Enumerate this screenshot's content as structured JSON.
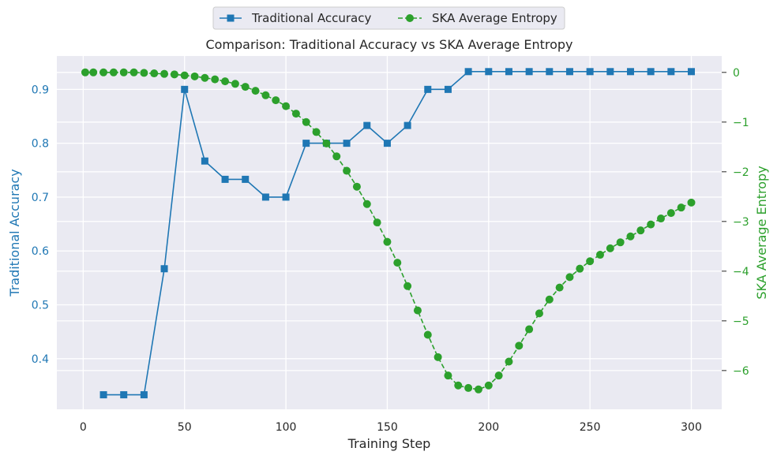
{
  "chart_data": {
    "type": "line",
    "title": "Comparison: Traditional Accuracy vs SKA Average Entropy",
    "xlabel": "Training Step",
    "ylabel_left": "Traditional Accuracy",
    "ylabel_right": "SKA Average Entropy",
    "xlim": [
      -13,
      315
    ],
    "ylim_left": [
      0.306,
      0.962
    ],
    "ylim_right": [
      -6.78,
      0.33
    ],
    "x_ticks": [
      "0",
      "50",
      "100",
      "150",
      "200",
      "250",
      "300"
    ],
    "y_left_ticks": [
      "0.4",
      "0.5",
      "0.6",
      "0.7",
      "0.8",
      "0.9"
    ],
    "y_right_ticks": [
      "0",
      "−1",
      "−2",
      "−3",
      "−4",
      "−5",
      "−6"
    ],
    "grid": true,
    "legend_position": "top-center (outside)",
    "colors": {
      "accuracy": "#1f77b4",
      "entropy": "#2ca02c",
      "plot_bg": "#eaeaf2",
      "grid": "#ffffff",
      "text": "#262626"
    },
    "series": [
      {
        "name": "Traditional Accuracy",
        "axis": "left",
        "marker": "square",
        "linestyle": "solid",
        "x": [
          10,
          20,
          30,
          40,
          50,
          60,
          70,
          80,
          90,
          100,
          110,
          120,
          130,
          140,
          150,
          160,
          170,
          180,
          190,
          200,
          210,
          220,
          230,
          240,
          250,
          260,
          270,
          280,
          290,
          300
        ],
        "values": [
          0.333,
          0.333,
          0.333,
          0.567,
          0.9,
          0.767,
          0.733,
          0.733,
          0.7,
          0.7,
          0.8,
          0.8,
          0.8,
          0.833,
          0.8,
          0.833,
          0.9,
          0.9,
          0.933,
          0.933,
          0.933,
          0.933,
          0.933,
          0.933,
          0.933,
          0.933,
          0.933,
          0.933,
          0.933,
          0.933
        ]
      },
      {
        "name": "SKA Average Entropy",
        "axis": "right",
        "marker": "circle",
        "linestyle": "dashed",
        "x": [
          1,
          5,
          10,
          15,
          20,
          25,
          30,
          35,
          40,
          45,
          50,
          55,
          60,
          65,
          70,
          75,
          80,
          85,
          90,
          95,
          100,
          105,
          110,
          115,
          120,
          125,
          130,
          135,
          140,
          145,
          150,
          155,
          160,
          165,
          170,
          175,
          180,
          185,
          190,
          195,
          200,
          205,
          210,
          215,
          220,
          225,
          230,
          235,
          240,
          245,
          250,
          255,
          260,
          265,
          270,
          275,
          280,
          285,
          290,
          295,
          300
        ],
        "values": [
          0.0,
          0.0,
          0.0,
          0.0,
          0.0,
          0.0,
          -0.01,
          -0.02,
          -0.03,
          -0.04,
          -0.06,
          -0.08,
          -0.11,
          -0.14,
          -0.18,
          -0.23,
          -0.29,
          -0.37,
          -0.46,
          -0.56,
          -0.68,
          -0.83,
          -1.0,
          -1.2,
          -1.43,
          -1.69,
          -1.98,
          -2.3,
          -2.65,
          -3.02,
          -3.41,
          -3.83,
          -4.3,
          -4.79,
          -5.28,
          -5.73,
          -6.1,
          -6.3,
          -6.35,
          -6.38,
          -6.3,
          -6.1,
          -5.82,
          -5.5,
          -5.17,
          -4.85,
          -4.57,
          -4.33,
          -4.12,
          -3.95,
          -3.8,
          -3.67,
          -3.54,
          -3.42,
          -3.3,
          -3.18,
          -3.06,
          -2.94,
          -2.83,
          -2.72,
          -2.62
        ]
      }
    ]
  }
}
